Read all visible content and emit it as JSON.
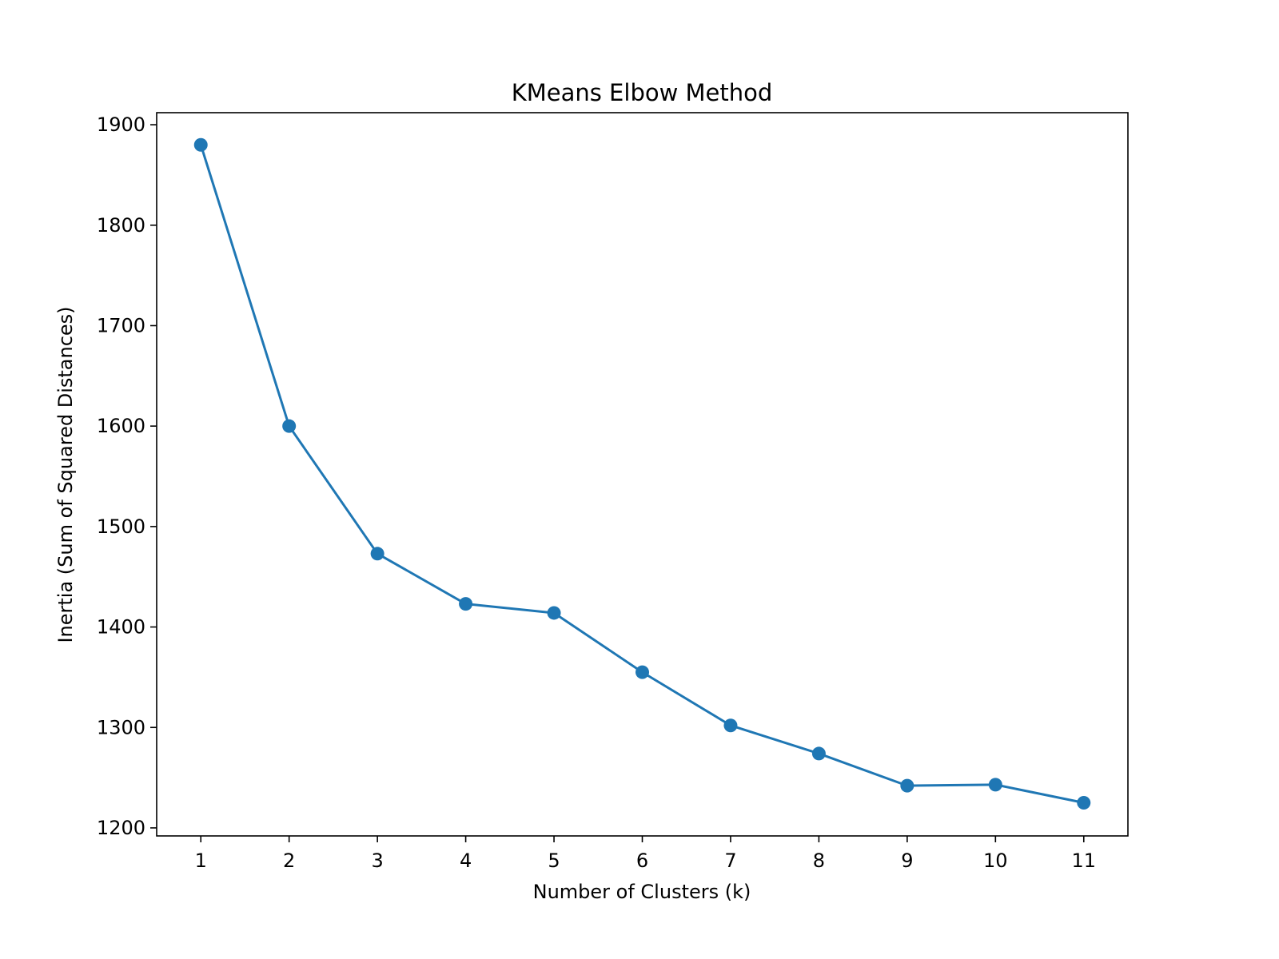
{
  "chart_data": {
    "type": "line",
    "title": "KMeans Elbow Method",
    "xlabel": "Number of Clusters (k)",
    "ylabel": "Inertia (Sum of Squared Distances)",
    "x": [
      1,
      2,
      3,
      4,
      5,
      6,
      7,
      8,
      9,
      10,
      11
    ],
    "series": [
      {
        "values": [
          1880,
          1600,
          1473,
          1423,
          1414,
          1355,
          1302,
          1274,
          1242,
          1243,
          1225
        ],
        "color": "#1f77b4",
        "marker": "circle"
      }
    ],
    "xticks": [
      "1",
      "2",
      "3",
      "4",
      "5",
      "6",
      "7",
      "8",
      "9",
      "10",
      "11"
    ],
    "yticks": [
      "1200",
      "1300",
      "1400",
      "1500",
      "1600",
      "1700",
      "1800",
      "1900"
    ],
    "xlim": [
      0.5,
      11.5
    ],
    "ylim": [
      1192,
      1912
    ],
    "grid": false,
    "legend": false
  }
}
